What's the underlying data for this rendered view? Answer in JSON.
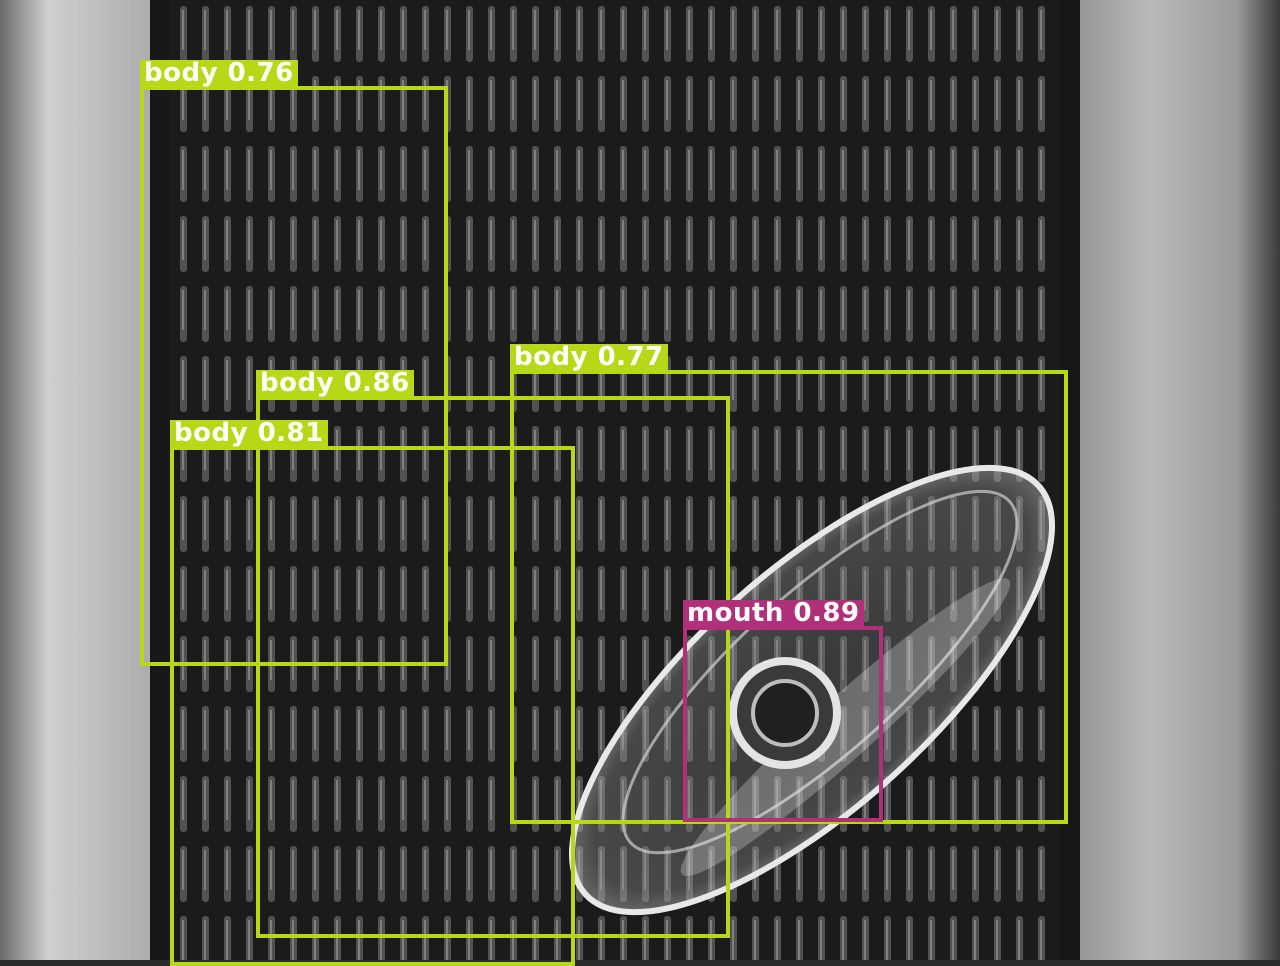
{
  "image": {
    "description_colors": {
      "body_class_color": "#b7d816",
      "mouth_class_color": "#b0307a"
    }
  },
  "detections": [
    {
      "class": "body",
      "score": "0.76",
      "color": "#b7d816"
    },
    {
      "class": "body",
      "score": "0.77",
      "color": "#b7d816"
    },
    {
      "class": "body",
      "score": "0.86",
      "color": "#b7d816"
    },
    {
      "class": "body",
      "score": "0.81",
      "color": "#b7d816"
    },
    {
      "class": "mouth",
      "score": "0.89",
      "color": "#b0307a"
    }
  ]
}
